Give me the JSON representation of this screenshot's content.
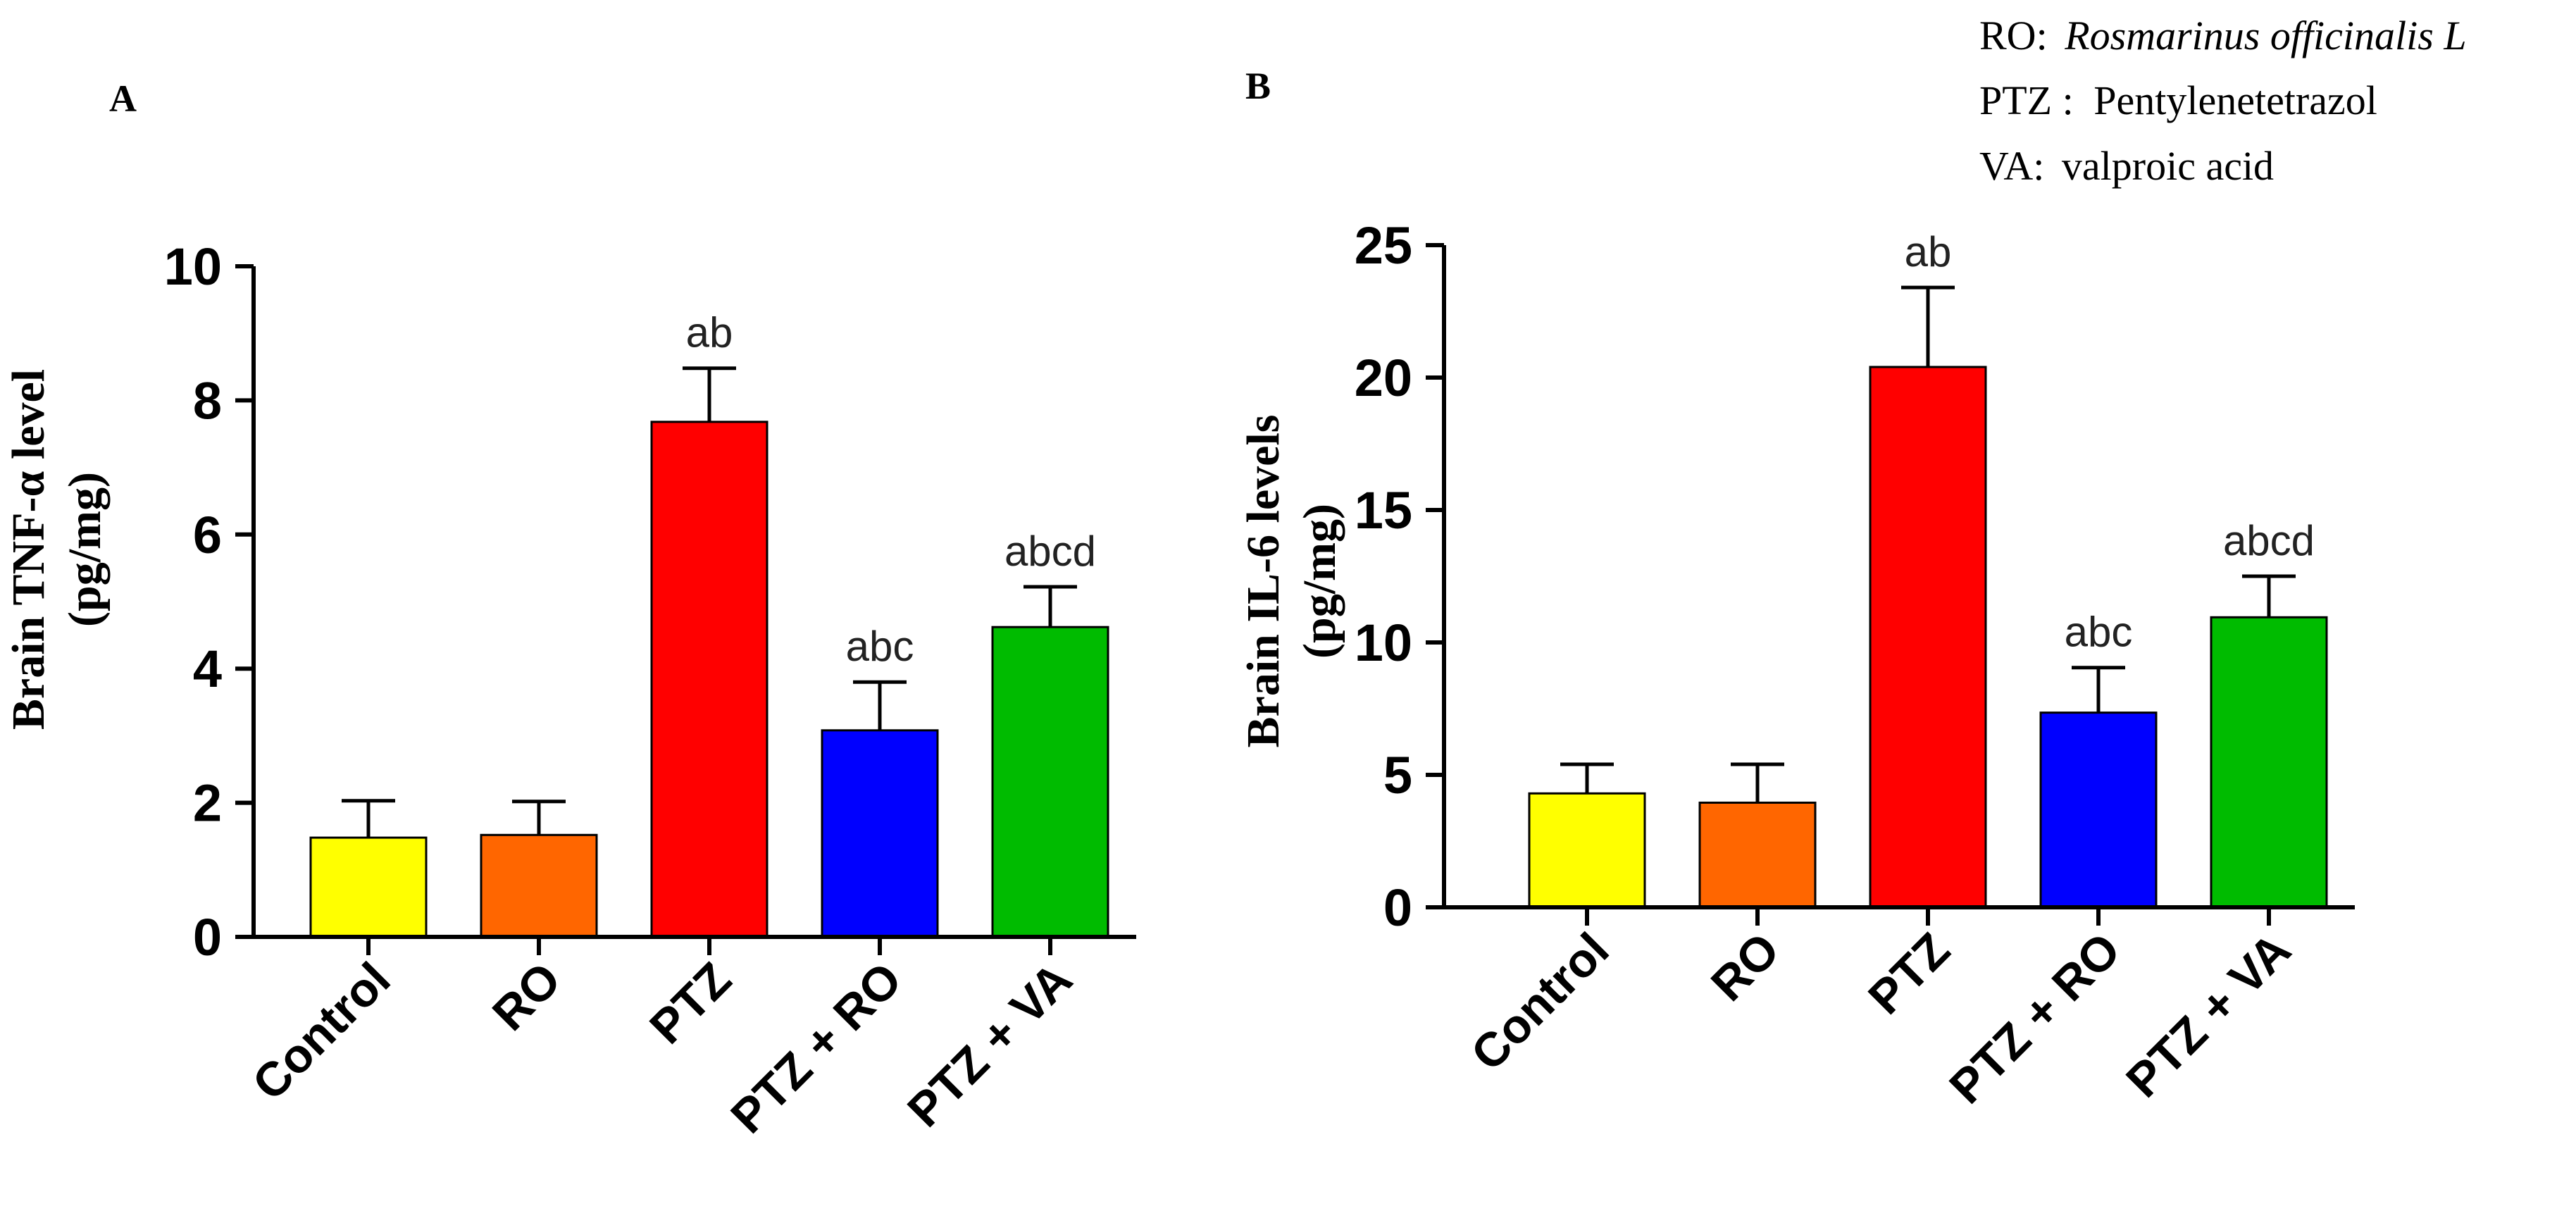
{
  "legend": {
    "lines": [
      {
        "abbr": "RO:",
        "text": "Rosmarinus officinalis L",
        "italic": true
      },
      {
        "abbr": "PTZ :",
        "text": "Pentylenetetrazol",
        "italic": false
      },
      {
        "abbr": "VA:",
        "text": "valproic acid",
        "italic": false
      }
    ]
  },
  "chart_data": [
    {
      "panel": "A",
      "type": "bar",
      "categories": [
        "Control",
        "RO",
        "PTZ",
        "PTZ + RO",
        "PTZ + VA"
      ],
      "values": [
        1.48,
        1.52,
        7.68,
        3.08,
        4.62
      ],
      "errors": [
        0.55,
        0.5,
        0.8,
        0.72,
        0.6
      ],
      "annotations": [
        "",
        "",
        "ab",
        "abc",
        "abcd"
      ],
      "colors": [
        "#ffff00",
        "#ff6600",
        "#ff0000",
        "#0000ff",
        "#00bb00"
      ],
      "ylabel_line1": "Brain TNF-α level",
      "ylabel_line2": "(pg/mg)",
      "ylim": [
        0,
        10
      ],
      "yticks": [
        0,
        2,
        4,
        6,
        8,
        10
      ]
    },
    {
      "panel": "B",
      "type": "bar",
      "categories": [
        "Control",
        "RO",
        "PTZ",
        "PTZ + RO",
        "PTZ + VA"
      ],
      "values": [
        4.3,
        3.95,
        20.4,
        7.35,
        10.95
      ],
      "errors": [
        1.1,
        1.45,
        3.0,
        1.7,
        1.55
      ],
      "annotations": [
        "",
        "",
        "ab",
        "abc",
        "abcd"
      ],
      "colors": [
        "#ffff00",
        "#ff6600",
        "#ff0000",
        "#0000ff",
        "#00bb00"
      ],
      "ylabel_line1": "Brain IL-6 levels",
      "ylabel_line2": "(pg/mg)",
      "ylim": [
        0,
        25
      ],
      "yticks": [
        0,
        5,
        10,
        15,
        20,
        25
      ]
    }
  ]
}
